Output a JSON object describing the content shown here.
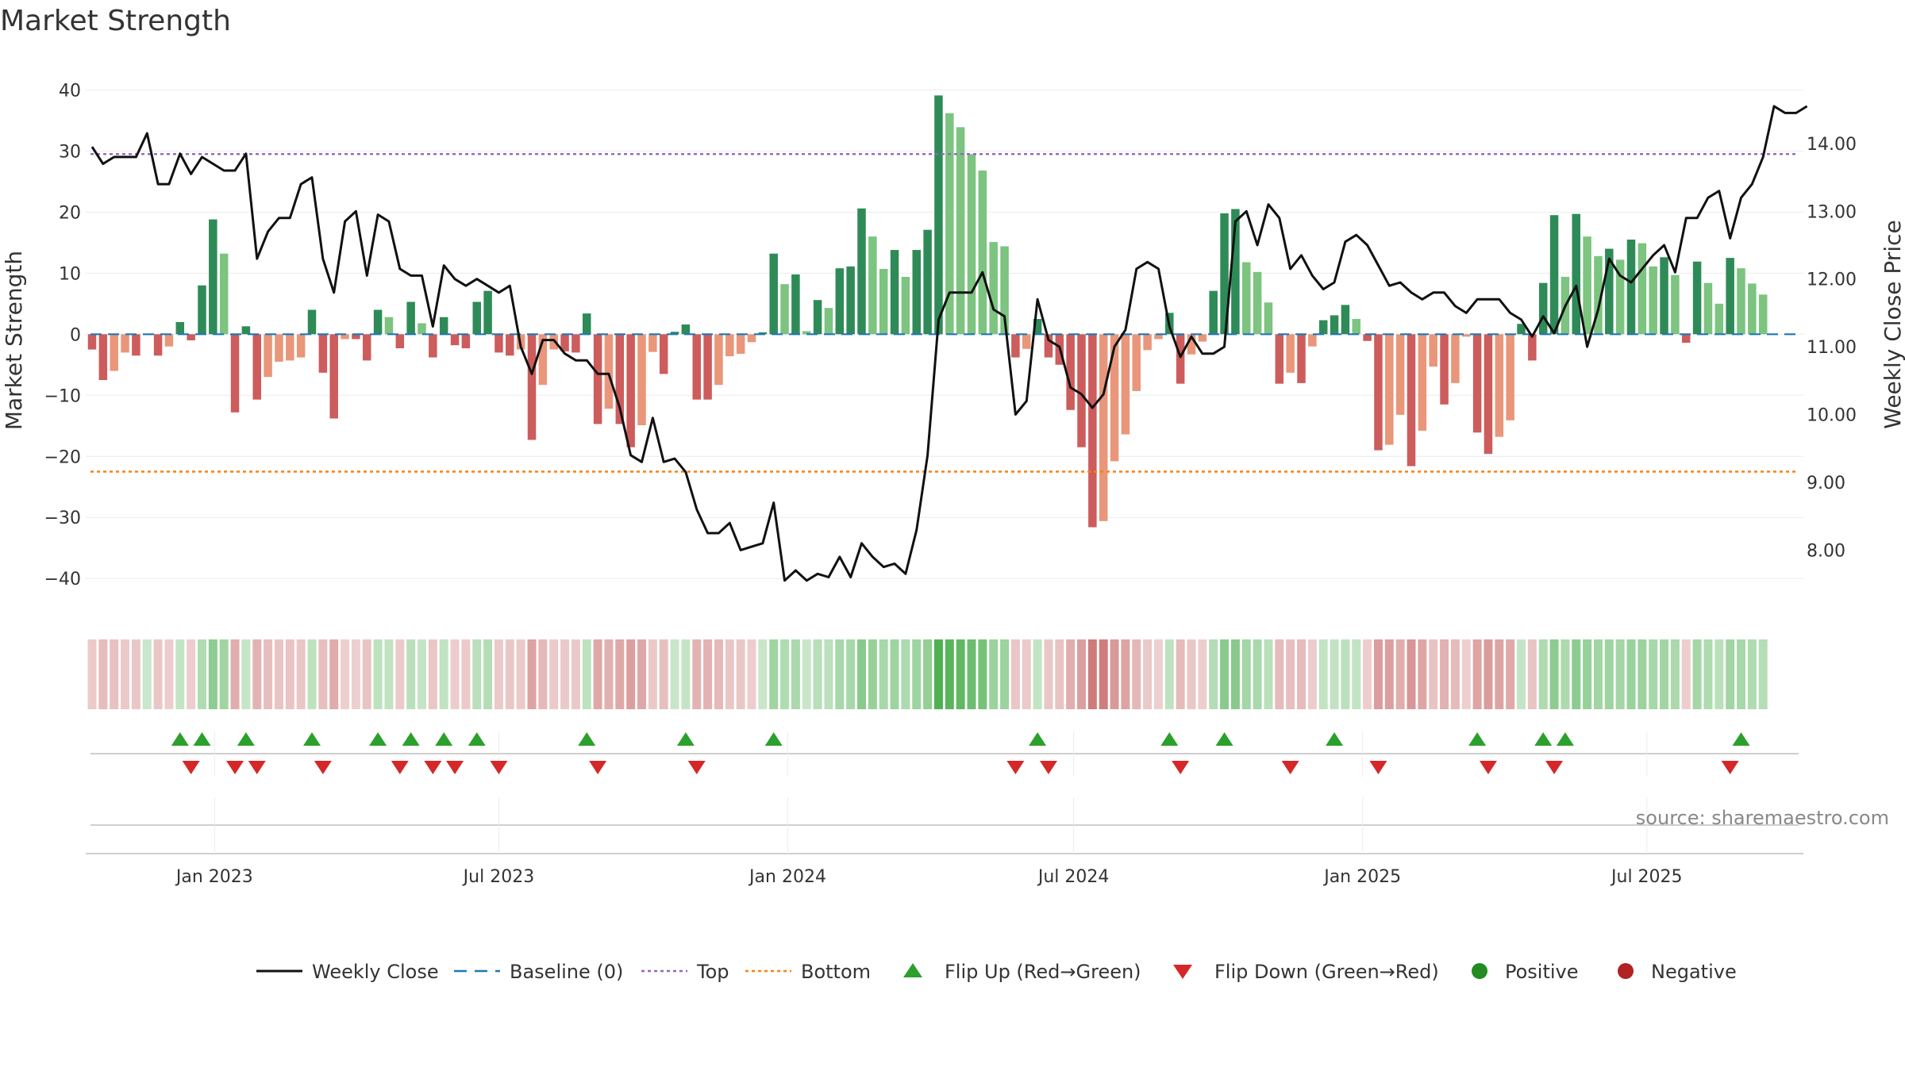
{
  "chart_data": {
    "type": "bar",
    "title": "Market Strength",
    "ylabel": "Market Strength",
    "y2label": "Weekly Close Price",
    "ylim": [
      -44,
      42
    ],
    "y2lim": [
      7.22,
      14.97
    ],
    "yticks": [
      -40,
      -30,
      -20,
      -10,
      0,
      10,
      20,
      30,
      40
    ],
    "y2ticks": [
      "8.00",
      "9.00",
      "10.00",
      "11.00",
      "12.00",
      "13.00",
      "14.00"
    ],
    "top_level": 29.5,
    "bottom_level": -22.5,
    "baseline": 0,
    "start_date": "2022-10-15",
    "x_ticks": [
      {
        "label": "Jan 2023",
        "date": "2023-01-01"
      },
      {
        "label": "Jul 2023",
        "date": "2023-07-01"
      },
      {
        "label": "Jan 2024",
        "date": "2024-01-01"
      },
      {
        "label": "Jul 2024",
        "date": "2024-07-01"
      },
      {
        "label": "Jan 2025",
        "date": "2025-01-01"
      },
      {
        "label": "Jul 2025",
        "date": "2025-07-01"
      }
    ],
    "strength": [
      -2.5,
      -7.5,
      -6,
      -3,
      -3.5,
      0,
      -3.5,
      -2,
      2,
      -1,
      8,
      18.8,
      13.2,
      -12.8,
      1.3,
      -10.7,
      -7,
      -4.5,
      -4.3,
      -3.8,
      4,
      -6.3,
      -13.8,
      -0.8,
      -0.8,
      -4.3,
      4,
      2.8,
      -2.3,
      5.3,
      1.8,
      -3.8,
      2.8,
      -1.8,
      -2.3,
      5.3,
      7.1,
      -3,
      -3.5,
      -2.5,
      -17.3,
      -8.3,
      -2.5,
      -2.8,
      -3,
      3.4,
      -14.7,
      -12.2,
      -14.7,
      -18.5,
      -14.9,
      -2.9,
      -6.5,
      0.4,
      1.6,
      -10.7,
      -10.7,
      -8.3,
      -3.6,
      -3.2,
      -1.3,
      0.3,
      13.2,
      8.2,
      9.8,
      0.5,
      5.6,
      4.3,
      10.8,
      11.1,
      20.6,
      16,
      10.7,
      13.8,
      9.4,
      13.8,
      17.1,
      39.1,
      36.2,
      33.9,
      29.5,
      26.8,
      15.1,
      14.4,
      -3.8,
      -2.4,
      2.5,
      -3.8,
      -5,
      -12.4,
      -18.5,
      -31.6,
      -30.6,
      -20.8,
      -16.4,
      -9.3,
      -2.6,
      -0.8,
      3.5,
      -8.1,
      -3.3,
      -1.2,
      7.1,
      19.8,
      20.5,
      11.8,
      10.2,
      5.2,
      -8.1,
      -6.3,
      -8,
      -2,
      2.3,
      3.1,
      4.8,
      2.5,
      -1.1,
      -19,
      -18.1,
      -13.2,
      -21.6,
      -15.8,
      -5.3,
      -11.5,
      -8,
      -0.4,
      -16.1,
      -19.6,
      -16.8,
      -14.1,
      1.7,
      -4.3,
      8.4,
      19.5,
      9.4,
      19.7,
      16,
      12.8,
      14,
      12.2,
      15.5,
      14.9,
      11.1,
      12.6,
      9.7,
      -1.4,
      11.9,
      8.4,
      5,
      12.5,
      10.8,
      8.3,
      6.5
    ],
    "weekly_close": [
      13.95,
      13.7,
      13.8,
      13.8,
      13.8,
      14.15,
      13.4,
      13.4,
      13.85,
      13.55,
      13.8,
      13.7,
      13.6,
      13.6,
      13.85,
      12.3,
      12.7,
      12.9,
      12.9,
      13.4,
      13.5,
      12.3,
      11.8,
      12.85,
      13.0,
      12.05,
      12.95,
      12.85,
      12.15,
      12.05,
      12.05,
      11.3,
      12.2,
      12.0,
      11.9,
      12.0,
      11.9,
      11.8,
      11.9,
      11.0,
      10.6,
      11.1,
      11.1,
      10.9,
      10.8,
      10.8,
      10.6,
      10.6,
      10.1,
      9.4,
      9.3,
      9.95,
      9.3,
      9.35,
      9.15,
      8.6,
      8.25,
      8.25,
      8.4,
      8.0,
      8.05,
      8.1,
      8.7,
      7.55,
      7.7,
      7.55,
      7.65,
      7.6,
      7.9,
      7.6,
      8.1,
      7.9,
      7.75,
      7.8,
      7.65,
      8.3,
      9.4,
      11.4,
      11.8,
      11.8,
      11.8,
      12.1,
      11.55,
      11.45,
      10.0,
      10.2,
      11.7,
      11.1,
      11.0,
      10.4,
      10.3,
      10.1,
      10.3,
      11.0,
      11.25,
      12.15,
      12.25,
      12.15,
      11.3,
      10.85,
      11.15,
      10.9,
      10.9,
      11.0,
      12.85,
      13.0,
      12.5,
      13.1,
      12.9,
      12.15,
      12.35,
      12.05,
      11.85,
      11.95,
      12.55,
      12.65,
      12.5,
      12.2,
      11.9,
      11.95,
      11.8,
      11.7,
      11.8,
      11.8,
      11.6,
      11.5,
      11.7,
      11.7,
      11.7,
      11.5,
      11.4,
      11.15,
      11.45,
      11.2,
      11.6,
      11.9,
      11.0,
      11.55,
      12.3,
      12.05,
      11.95,
      12.15,
      12.35,
      12.5,
      12.1,
      12.9,
      12.9,
      13.2,
      13.3,
      12.6,
      13.2,
      13.4,
      13.8,
      14.55,
      14.45,
      14.45,
      14.55
    ],
    "flip_up": [
      8,
      10,
      14,
      20,
      26,
      29,
      32,
      35,
      45,
      54,
      62,
      86,
      98,
      103,
      113,
      126,
      132,
      134,
      150
    ],
    "flip_down": [
      9,
      13,
      15,
      21,
      28,
      31,
      33,
      37,
      46,
      55,
      84,
      87,
      99,
      109,
      117,
      127,
      133,
      149
    ],
    "colors": {
      "pos_dark": "#2e8b57",
      "pos_light": "#7cc47f",
      "neg_dark": "#cd5c5c",
      "neg_light": "#e9967a",
      "baseline": "#1f77b4",
      "top": "#9467bd",
      "bottom": "#ff7f0e",
      "line": "#111111",
      "flip_up": "#2ca02c",
      "flip_down": "#d62728",
      "positive": "#228b22",
      "negative": "#b22222"
    }
  },
  "source": "source: sharemaestro.com",
  "legend": [
    {
      "key": "weekly_close",
      "label": "Weekly Close",
      "symbol": "line"
    },
    {
      "key": "baseline",
      "label": "Baseline (0)",
      "symbol": "dash"
    },
    {
      "key": "top",
      "label": "Top",
      "symbol": "dot"
    },
    {
      "key": "bottom",
      "label": "Bottom",
      "symbol": "dot"
    },
    {
      "key": "flip_up",
      "label": "Flip Up (Red→Green)",
      "symbol": "tri-up"
    },
    {
      "key": "flip_down",
      "label": "Flip Down (Green→Red)",
      "symbol": "tri-down"
    },
    {
      "key": "positive",
      "label": "Positive",
      "symbol": "circle"
    },
    {
      "key": "negative",
      "label": "Negative",
      "symbol": "circle"
    }
  ]
}
